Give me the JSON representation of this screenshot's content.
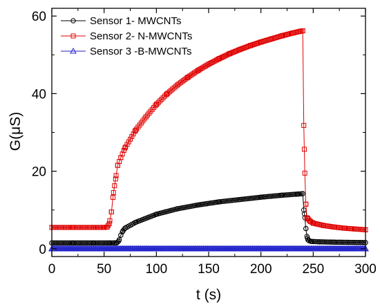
{
  "chart_data": {
    "type": "scatter",
    "xlabel": "t (s)",
    "ylabel": "G(μS)",
    "xlim": [
      0,
      300
    ],
    "ylim": [
      -2,
      62
    ],
    "x_ticks": [
      0,
      50,
      100,
      150,
      200,
      250,
      300
    ],
    "y_ticks": [
      0,
      20,
      40,
      60
    ],
    "grid": false,
    "legend_position": "top-left",
    "series": [
      {
        "name": "Sensor 1- MWCNTs",
        "color": "#000000",
        "marker": "circle",
        "x": [
          0,
          20,
          40,
          55,
          60,
          62,
          64,
          66,
          68,
          70,
          80,
          100,
          120,
          140,
          160,
          180,
          200,
          220,
          235,
          240,
          241,
          242,
          243,
          244,
          245,
          246,
          248,
          255,
          270,
          300
        ],
        "y": [
          1.5,
          1.5,
          1.5,
          1.5,
          1.5,
          1.5,
          2.0,
          3.5,
          4.6,
          5.3,
          6.8,
          8.9,
          10.3,
          11.3,
          12.1,
          12.7,
          13.3,
          13.8,
          14.1,
          14.2,
          10.0,
          8.0,
          5.2,
          3.2,
          2.3,
          2.1,
          1.9,
          1.8,
          1.7,
          1.6
        ]
      },
      {
        "name": "Sensor 2- N-MWCNTs",
        "color": "#e00000",
        "marker": "square",
        "x": [
          0,
          20,
          40,
          50,
          53,
          55,
          57,
          59,
          61,
          63,
          66,
          70,
          80,
          90,
          100,
          110,
          120,
          130,
          140,
          150,
          160,
          170,
          180,
          190,
          200,
          210,
          220,
          230,
          238,
          240,
          241,
          242,
          243,
          244,
          245,
          247,
          250,
          260,
          270,
          280,
          290,
          300
        ],
        "y": [
          5.5,
          5.5,
          5.5,
          5.5,
          5.6,
          6.5,
          9.5,
          14.5,
          18.0,
          21.5,
          23.5,
          26.0,
          30.5,
          34.0,
          37.2,
          39.9,
          42.2,
          44.2,
          46.0,
          47.6,
          49.0,
          50.3,
          51.4,
          52.4,
          53.3,
          54.1,
          54.9,
          55.6,
          56.1,
          56.2,
          31.8,
          19.5,
          11.5,
          8.0,
          7.7,
          7.1,
          6.6,
          6.0,
          5.6,
          5.3,
          5.1,
          4.9
        ]
      },
      {
        "name": "Sensor 3 -B-MWCNTs",
        "color": "#2222cc",
        "marker": "triangle",
        "x": [
          0,
          300
        ],
        "y": [
          0,
          0
        ],
        "dense_sampling_s": 1
      }
    ]
  }
}
